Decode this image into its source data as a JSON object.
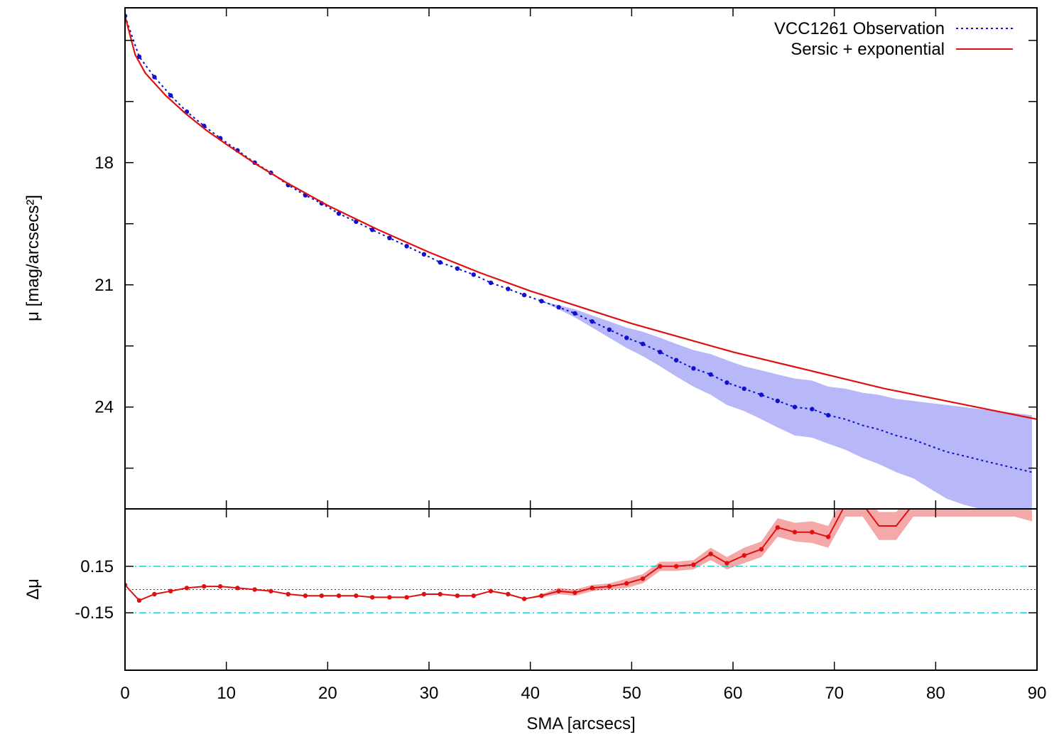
{
  "chart_data": [
    {
      "panel": "profile",
      "type": "line",
      "title": "",
      "xlabel": "",
      "ylabel": "μ [mag/arcsecs²]",
      "xlim": [
        0,
        90
      ],
      "ylim": [
        26.5,
        14.2
      ],
      "y_inverted": true,
      "xticks": [
        0,
        10,
        20,
        30,
        40,
        50,
        60,
        70,
        80,
        90
      ],
      "yticks_labeled": [
        18,
        21,
        24
      ],
      "yticks_minor": [
        15,
        16.5,
        19.5,
        22.5,
        25.5
      ],
      "legend_position": "top-right",
      "series": [
        {
          "name": "VCC1261 Observation",
          "style": "dotted-with-points",
          "color": "#1010d0",
          "x": [
            0,
            1.4,
            2.9,
            4.5,
            6.1,
            7.8,
            9.4,
            11.1,
            12.8,
            14.4,
            16.1,
            17.8,
            19.4,
            21.1,
            22.8,
            24.4,
            26.1,
            27.8,
            29.5,
            31.1,
            32.8,
            34.4,
            36.1,
            37.8,
            39.4,
            41.1,
            42.8,
            44.4,
            46.1,
            47.8,
            49.5,
            51.1,
            52.8,
            54.4,
            56.1,
            57.8,
            59.4,
            61.1,
            62.8,
            64.4,
            66.1,
            67.8,
            69.4,
            71.1,
            72.8,
            74.4,
            76.1,
            77.8,
            79.4,
            81.1,
            82.8,
            84.4,
            86.1,
            87.8,
            89.5
          ],
          "y": [
            14.4,
            15.4,
            15.9,
            16.35,
            16.75,
            17.1,
            17.4,
            17.7,
            18.0,
            18.25,
            18.55,
            18.8,
            19.0,
            19.25,
            19.45,
            19.65,
            19.85,
            20.05,
            20.25,
            20.45,
            20.6,
            20.75,
            20.95,
            21.1,
            21.25,
            21.4,
            21.55,
            21.7,
            21.9,
            22.1,
            22.3,
            22.45,
            22.65,
            22.85,
            23.05,
            23.2,
            23.4,
            23.55,
            23.7,
            23.85,
            24.0,
            24.05,
            24.2,
            24.3,
            24.45,
            24.55,
            24.7,
            24.8,
            24.95,
            25.1,
            25.2,
            25.3,
            25.4,
            25.5,
            25.6
          ],
          "error_low": [
            14.4,
            15.4,
            15.9,
            16.35,
            16.75,
            17.1,
            17.4,
            17.7,
            18.0,
            18.25,
            18.55,
            18.8,
            19.0,
            19.25,
            19.45,
            19.65,
            19.85,
            20.05,
            20.25,
            20.45,
            20.6,
            20.75,
            20.95,
            21.1,
            21.25,
            21.4,
            21.5,
            21.6,
            21.75,
            21.9,
            22.05,
            22.15,
            22.3,
            22.45,
            22.6,
            22.7,
            22.85,
            23.0,
            23.1,
            23.2,
            23.3,
            23.35,
            23.5,
            23.55,
            23.65,
            23.7,
            23.8,
            23.85,
            23.9,
            23.95,
            24.0,
            24.05,
            24.1,
            24.15,
            24.2
          ],
          "error_high": [
            14.4,
            15.4,
            15.9,
            16.35,
            16.75,
            17.1,
            17.4,
            17.7,
            18.0,
            18.25,
            18.55,
            18.8,
            19.0,
            19.25,
            19.45,
            19.65,
            19.85,
            20.05,
            20.25,
            20.45,
            20.6,
            20.75,
            20.95,
            21.1,
            21.25,
            21.4,
            21.6,
            21.8,
            22.05,
            22.3,
            22.55,
            22.75,
            23.0,
            23.25,
            23.5,
            23.7,
            23.95,
            24.1,
            24.3,
            24.5,
            24.7,
            24.75,
            24.9,
            25.05,
            25.25,
            25.4,
            25.6,
            25.75,
            26.0,
            26.25,
            26.4,
            26.5,
            26.5,
            26.5,
            26.5
          ]
        },
        {
          "name": "Sersic + exponential",
          "style": "solid",
          "color": "#e01010",
          "x": [
            0,
            1,
            2,
            4,
            6,
            8,
            10,
            13,
            16,
            20,
            25,
            30,
            35,
            40,
            45,
            50,
            55,
            60,
            65,
            70,
            75,
            80,
            85,
            90
          ],
          "y": [
            14.4,
            15.35,
            15.8,
            16.35,
            16.8,
            17.2,
            17.55,
            18.05,
            18.5,
            19.05,
            19.65,
            20.2,
            20.7,
            21.15,
            21.55,
            21.95,
            22.3,
            22.65,
            22.95,
            23.25,
            23.55,
            23.8,
            24.05,
            24.3
          ]
        }
      ]
    },
    {
      "panel": "residuals",
      "type": "line",
      "title": "",
      "xlabel": "SMA [arcsecs]",
      "ylabel": "Δμ",
      "xlim": [
        0,
        90
      ],
      "ylim": [
        -0.52,
        0.52
      ],
      "xticks": [
        0,
        10,
        20,
        30,
        40,
        50,
        60,
        70,
        80,
        90
      ],
      "yticks_labeled": [
        0.15,
        -0.15
      ],
      "reference_lines": [
        {
          "value": 0.15,
          "style": "dash-dot",
          "color": "#20d0d0"
        },
        {
          "value": -0.15,
          "style": "dash-dot",
          "color": "#20d0d0"
        },
        {
          "value": 0,
          "style": "dotted",
          "color": "#404040"
        }
      ],
      "series": [
        {
          "name": "",
          "style": "solid-with-points",
          "color": "#e01010",
          "x": [
            0,
            1.4,
            2.9,
            4.5,
            6.1,
            7.8,
            9.4,
            11.1,
            12.8,
            14.4,
            16.1,
            17.8,
            19.4,
            21.1,
            22.8,
            24.4,
            26.1,
            27.8,
            29.5,
            31.1,
            32.8,
            34.4,
            36.1,
            37.8,
            39.4,
            41.1,
            42.8,
            44.4,
            46.1,
            47.8,
            49.5,
            51.1,
            52.8,
            54.4,
            56.1,
            57.8,
            59.4,
            61.1,
            62.8,
            64.4,
            66.1,
            67.8,
            69.4,
            71.1,
            72.8,
            74.4,
            76.1,
            77.8,
            79.4,
            81.1,
            82.8,
            84.4,
            86.1,
            87.8,
            89.5
          ],
          "y": [
            0.03,
            -0.07,
            -0.03,
            -0.01,
            0.01,
            0.02,
            0.02,
            0.01,
            0.0,
            -0.01,
            -0.03,
            -0.04,
            -0.04,
            -0.04,
            -0.04,
            -0.05,
            -0.05,
            -0.05,
            -0.03,
            -0.03,
            -0.04,
            -0.04,
            -0.01,
            -0.03,
            -0.06,
            -0.04,
            -0.01,
            -0.02,
            0.01,
            0.02,
            0.04,
            0.07,
            0.15,
            0.15,
            0.16,
            0.23,
            0.17,
            0.22,
            0.26,
            0.4,
            0.37,
            0.37,
            0.34,
            0.55,
            0.55,
            0.41,
            0.41,
            0.55,
            0.55,
            0.55,
            0.55,
            0.55,
            0.55,
            0.55,
            0.52
          ],
          "error_low": [
            0.03,
            -0.07,
            -0.03,
            -0.01,
            0.01,
            0.02,
            0.02,
            0.01,
            0.0,
            -0.01,
            -0.03,
            -0.04,
            -0.04,
            -0.04,
            -0.04,
            -0.05,
            -0.05,
            -0.05,
            -0.03,
            -0.03,
            -0.04,
            -0.04,
            -0.01,
            -0.03,
            -0.06,
            -0.05,
            -0.03,
            -0.04,
            -0.01,
            0.0,
            0.01,
            0.04,
            0.12,
            0.12,
            0.13,
            0.19,
            0.13,
            0.17,
            0.21,
            0.34,
            0.31,
            0.3,
            0.27,
            0.47,
            0.47,
            0.32,
            0.32,
            0.47,
            0.47,
            0.47,
            0.47,
            0.47,
            0.47,
            0.47,
            0.44
          ],
          "error_high": [
            0.03,
            -0.07,
            -0.03,
            -0.01,
            0.01,
            0.02,
            0.02,
            0.01,
            0.0,
            -0.01,
            -0.03,
            -0.04,
            -0.04,
            -0.04,
            -0.04,
            -0.05,
            -0.05,
            -0.05,
            -0.03,
            -0.03,
            -0.04,
            -0.04,
            -0.01,
            -0.03,
            -0.06,
            -0.03,
            0.01,
            0.0,
            0.03,
            0.04,
            0.07,
            0.1,
            0.18,
            0.18,
            0.19,
            0.27,
            0.21,
            0.27,
            0.31,
            0.46,
            0.43,
            0.44,
            0.41,
            0.63,
            0.63,
            0.5,
            0.5,
            0.63,
            0.63,
            0.63,
            0.63,
            0.63,
            0.63,
            0.63,
            0.6
          ]
        }
      ]
    }
  ]
}
